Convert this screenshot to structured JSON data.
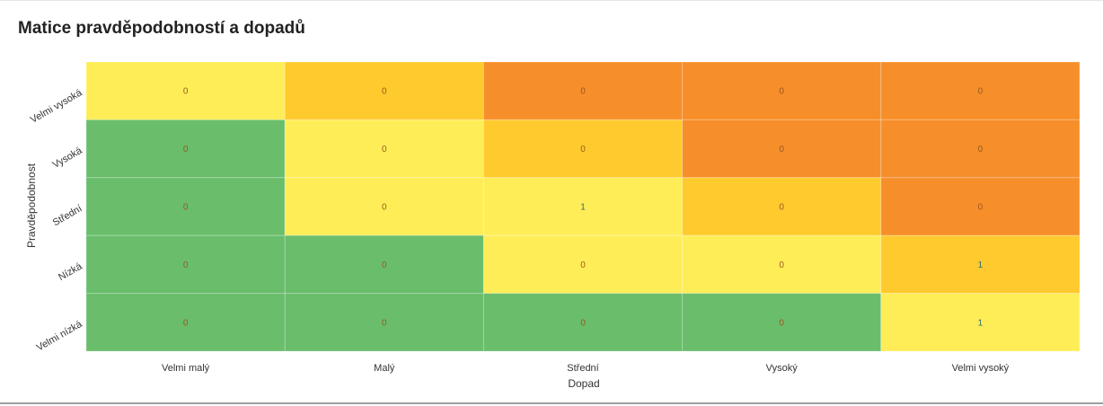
{
  "title": "Matice pravděpodobností a dopadů",
  "colors": {
    "green": "#69bd6b",
    "yellow": "#ffed57",
    "amber": "#ffca2e",
    "orange": "#f68e2a",
    "label_zero": "#9a5a1f",
    "label_one": "#2f6b6b"
  },
  "chart_data": {
    "type": "heatmap",
    "title": "Matice pravděpodobností a dopadů",
    "xlabel": "Dopad",
    "ylabel": "Pravděpodobnost",
    "x_categories": [
      "Velmi malý",
      "Malý",
      "Střední",
      "Vysoký",
      "Velmi vysoký"
    ],
    "y_categories": [
      "Velmi vysoká",
      "Vysoká",
      "Střední",
      "Nízká",
      "Velmi nízká"
    ],
    "values": [
      [
        0,
        0,
        0,
        0,
        0
      ],
      [
        0,
        0,
        0,
        0,
        0
      ],
      [
        0,
        0,
        1,
        0,
        0
      ],
      [
        0,
        0,
        0,
        0,
        1
      ],
      [
        0,
        0,
        0,
        0,
        1
      ]
    ],
    "cell_colors": [
      [
        "yellow",
        "amber",
        "orange",
        "orange",
        "orange"
      ],
      [
        "green",
        "yellow",
        "amber",
        "orange",
        "orange"
      ],
      [
        "green",
        "yellow",
        "yellow",
        "amber",
        "orange"
      ],
      [
        "green",
        "green",
        "yellow",
        "yellow",
        "amber"
      ],
      [
        "green",
        "green",
        "green",
        "green",
        "yellow"
      ]
    ]
  }
}
